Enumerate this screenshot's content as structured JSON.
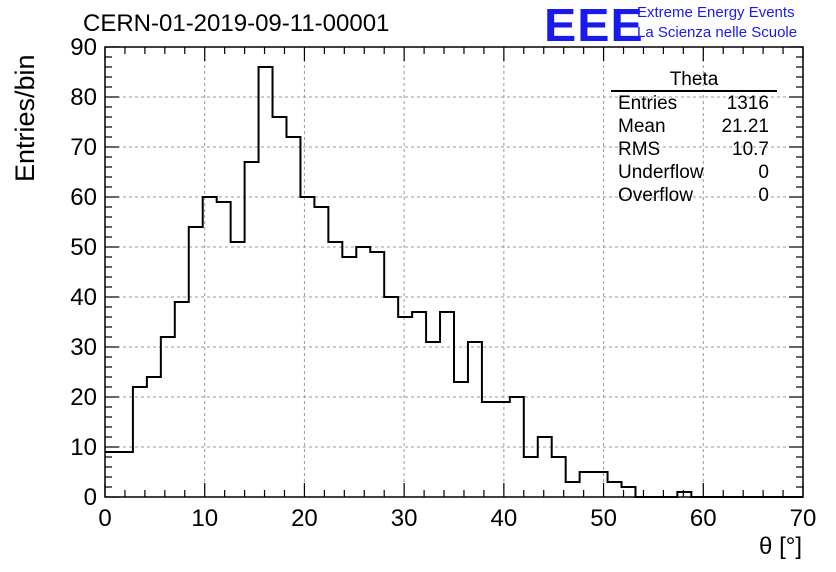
{
  "header": {
    "run_title": "CERN-01-2019-09-11-00001",
    "logo_text": "EEE",
    "logo_line1": "Extreme Energy Events",
    "logo_line2": "La Scienza nelle Scuole"
  },
  "stats_box": {
    "title": "Theta",
    "rows": [
      {
        "label": "Entries",
        "value": "1316"
      },
      {
        "label": "Mean",
        "value": "21.21"
      },
      {
        "label": "RMS",
        "value": "10.7"
      },
      {
        "label": "Underflow",
        "value": "0"
      },
      {
        "label": "Overflow",
        "value": "0"
      }
    ]
  },
  "colors": {
    "line": "#000000",
    "grid": "#999999",
    "logo": "#1a1aee"
  },
  "chart_data": {
    "type": "histogram",
    "xlabel": "θ [°]",
    "ylabel": "Entries/bin",
    "xlim": [
      0,
      70
    ],
    "ylim": [
      0,
      90
    ],
    "x_ticks": [
      0,
      10,
      20,
      30,
      40,
      50,
      60,
      70
    ],
    "y_ticks": [
      0,
      10,
      20,
      30,
      40,
      50,
      60,
      70,
      80,
      90
    ],
    "grid": true,
    "bin_width": 1.4,
    "bin_edges_start": 0,
    "values": [
      9,
      9,
      22,
      24,
      32,
      39,
      54,
      60,
      59,
      51,
      67,
      86,
      76,
      72,
      60,
      58,
      51,
      48,
      50,
      49,
      40,
      36,
      37,
      31,
      37,
      23,
      31,
      19,
      19,
      20,
      8,
      12,
      8,
      3,
      5,
      5,
      3,
      2,
      0,
      0,
      0,
      1,
      0,
      0,
      0,
      0,
      0,
      0,
      0,
      0
    ]
  }
}
